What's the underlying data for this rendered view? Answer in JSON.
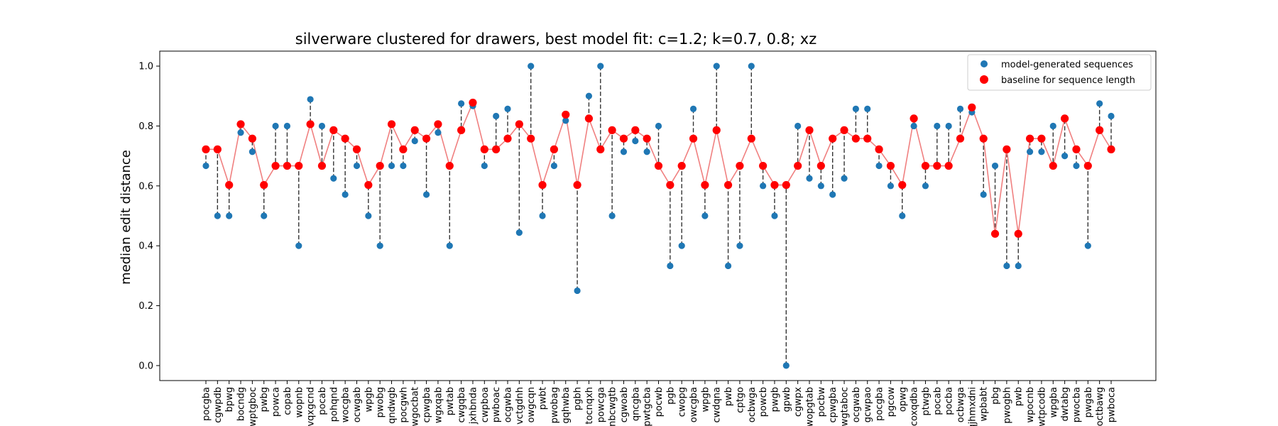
{
  "chart_data": {
    "type": "scatter",
    "title": "silverware clustered for drawers, best model fit: c=1.2; k=0.7, 0.8; xz",
    "xlabel": "",
    "ylabel": "median edit distance",
    "ylim": [
      -0.05,
      1.05
    ],
    "yticks": [
      "0.0",
      "0.2",
      "0.4",
      "0.6",
      "0.8",
      "1.0"
    ],
    "grid": false,
    "legend_position": "top-right",
    "colors": {
      "model": "#1f77b4",
      "baseline": "#ff0000",
      "baseline_line": "#f08080",
      "connector": "#333333"
    },
    "categories": [
      "pocgba",
      "cgwpdb",
      "bpwg",
      "bocndg",
      "wptgboc",
      "pwbg",
      "powca",
      "copab",
      "wopnb",
      "vqxgcnd",
      "pocab",
      "pohqnd",
      "wocgba",
      "ocwgab",
      "wpgb",
      "pwobg",
      "qndwgb",
      "pocgwh",
      "wgocbat",
      "cpwgba",
      "wgxqab",
      "pwtab",
      "cwgqba",
      "jxhbnda",
      "cwpboa",
      "pwboac",
      "ocgwba",
      "vctgdnh",
      "owgcqn",
      "pwbt",
      "pwobag",
      "gqhwba",
      "pgbh",
      "tocnqxh",
      "powcga",
      "nbcwgtb",
      "cgwoab",
      "qncgba",
      "pwtgcba",
      "pocwb",
      "pgb",
      "cwopg",
      "owcgba",
      "wpgb",
      "cwdqna",
      "pwb",
      "cptgo",
      "ocbwga",
      "powcb",
      "pwgb",
      "gpwb",
      "cgwpx",
      "wopgtab",
      "pocbw",
      "cpwgba",
      "wgtaboc",
      "ocgwab",
      "gcwpao",
      "pocgba",
      "pgcow",
      "opwg",
      "coxqdba",
      "ptwgb",
      "pocab",
      "pocba",
      "ocbwga",
      "qjhmxdni",
      "wpbabt",
      "pbg",
      "pwogbh",
      "pwb",
      "wpocnb",
      "wtpcodb",
      "wpgba",
      "dwtabg",
      "pwocba",
      "pwgab",
      "octbawg",
      "pwboca"
    ],
    "series": [
      {
        "name": "model-generated sequences",
        "values": [
          0.667,
          0.5,
          0.5,
          0.778,
          0.714,
          0.5,
          0.8,
          0.8,
          0.4,
          0.889,
          0.8,
          0.625,
          0.571,
          0.667,
          0.5,
          0.4,
          0.667,
          0.667,
          0.75,
          0.571,
          0.778,
          0.4,
          0.875,
          0.867,
          0.667,
          0.833,
          0.857,
          0.444,
          1.0,
          0.5,
          0.667,
          0.818,
          0.25,
          0.9,
          1.0,
          0.5,
          0.714,
          0.75,
          0.714,
          0.8,
          0.333,
          0.4,
          0.857,
          0.5,
          1.0,
          0.333,
          0.4,
          1.0,
          0.6,
          0.5,
          0.0,
          0.8,
          0.625,
          0.6,
          0.571,
          0.625,
          0.857,
          0.857,
          0.667,
          0.6,
          0.5,
          0.8,
          0.6,
          0.8,
          0.8,
          0.857,
          0.846,
          0.571,
          0.667,
          0.333,
          0.333,
          0.714,
          0.714,
          0.8,
          0.7,
          0.667,
          0.4,
          0.875,
          0.833
        ]
      },
      {
        "name": "baseline for sequence length",
        "values": [
          0.722,
          0.722,
          0.603,
          0.806,
          0.758,
          0.603,
          0.667,
          0.667,
          0.667,
          0.806,
          0.667,
          0.786,
          0.758,
          0.722,
          0.603,
          0.667,
          0.806,
          0.722,
          0.786,
          0.758,
          0.806,
          0.667,
          0.786,
          0.878,
          0.722,
          0.722,
          0.758,
          0.806,
          0.758,
          0.603,
          0.722,
          0.838,
          0.603,
          0.825,
          0.722,
          0.786,
          0.758,
          0.786,
          0.758,
          0.667,
          0.603,
          0.667,
          0.758,
          0.603,
          0.786,
          0.603,
          0.667,
          0.758,
          0.667,
          0.603,
          0.603,
          0.667,
          0.786,
          0.667,
          0.758,
          0.786,
          0.758,
          0.758,
          0.722,
          0.667,
          0.603,
          0.825,
          0.667,
          0.667,
          0.667,
          0.758,
          0.862,
          0.758,
          0.44,
          0.722,
          0.44,
          0.758,
          0.758,
          0.667,
          0.825,
          0.722,
          0.667,
          0.786,
          0.722
        ]
      }
    ]
  }
}
